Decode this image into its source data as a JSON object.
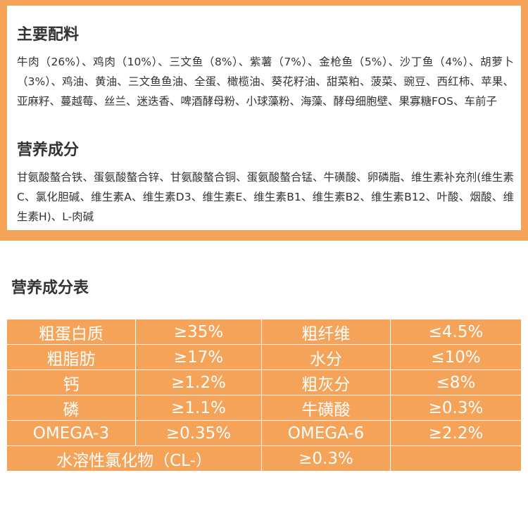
{
  "ingredients": {
    "main_heading": "主要配料",
    "main_text": "牛肉（26%）、鸡肉（10%）、三文鱼（8%）、紫薯（7%）、金枪鱼（5%）、沙丁鱼（4%）、胡萝卜（3%）、鸡油、黄油、三文鱼鱼油、全蛋、橄榄油、葵花籽油、甜菜粕、菠菜、豌豆、西红柿、苹果、亚麻籽、蔓越莓、丝兰、迷迭香、啤酒酵母粉、小球藻粉、海藻、酵母细胞壁、果寡糖FOS、车前子",
    "nutrition_heading": "营养成分",
    "nutrition_text": "甘氨酸螯合铁、蛋氨酸螯合锌、甘氨酸螯合铜、蛋氨酸螯合锰、牛磺酸、卵磷脂、维生素补充剂(维生素C、氯化胆碱、维生素A、维生素D3、维生素E、维生素B1、维生素B2、维生素B12、叶酸、烟酸、维生素H)、L-肉碱"
  },
  "table": {
    "title": "营养成分表",
    "rows": [
      {
        "name1": "粗蛋白质",
        "value1": "≥35%",
        "name2": "粗纤维",
        "value2": "≤4.5%"
      },
      {
        "name1": "粗脂肪",
        "value1": "≥17%",
        "name2": "水分",
        "value2": "≤10%"
      },
      {
        "name1": "钙",
        "value1": "≥1.2%",
        "name2": "粗灰分",
        "value2": "≤8%"
      },
      {
        "name1": "磷",
        "value1": "≥1.1%",
        "name2": "牛磺酸",
        "value2": "≥0.3%"
      },
      {
        "name1": "OMEGA-3",
        "value1": "≥0.35%",
        "name2": "OMEGA-6",
        "value2": "≥2.2%"
      }
    ],
    "last_row": {
      "name": "水溶性氯化物（CL-）",
      "value": "≥0.3%"
    }
  },
  "colors": {
    "accent": "#f6a35a",
    "heading_text": "#333333",
    "table_text": "#ffffff"
  }
}
